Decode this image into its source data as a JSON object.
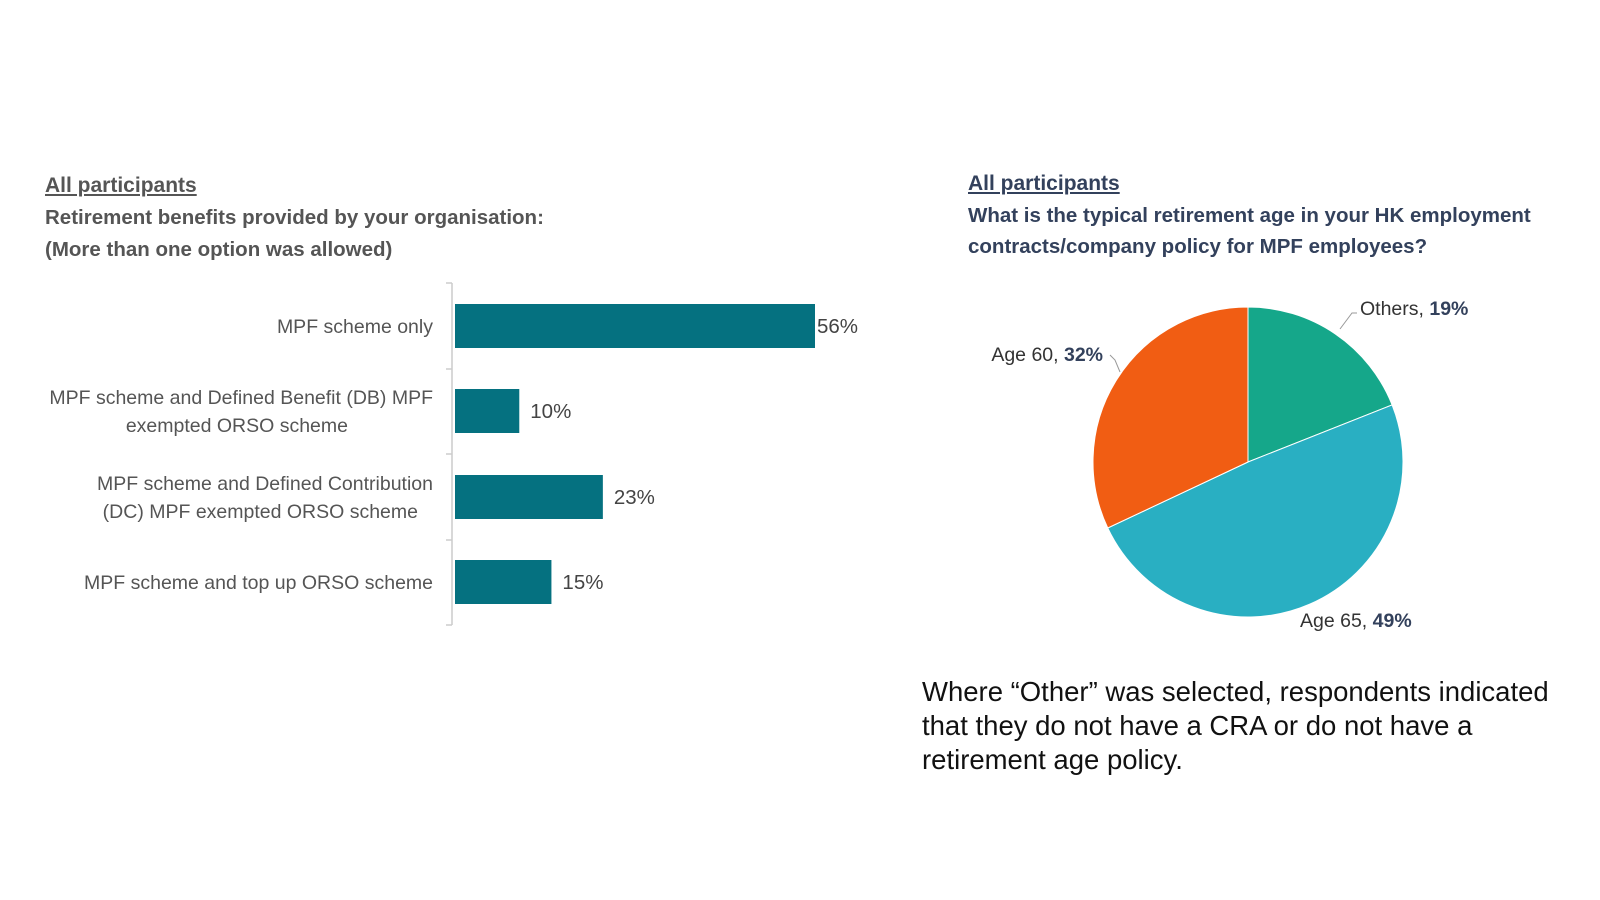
{
  "left_panel": {
    "tag": "All participants",
    "question_line1": "Retirement benefits provided by your organisation:",
    "question_line2": "(More than one option was allowed)"
  },
  "right_panel": {
    "tag": "All participants",
    "question_line1": "What is the typical retirement age in your HK employment",
    "question_line2": "contracts/company policy for MPF employees?"
  },
  "note": "Where “Other” was selected, respondents indicated that they do not have a CRA or do not have a retirement age policy.",
  "colors": {
    "bar": "#057180",
    "others": "#15a78a",
    "age65": "#29afc2",
    "age60": "#f15d13"
  },
  "chart_data": [
    {
      "type": "bar",
      "orientation": "horizontal",
      "title": "Retirement benefits provided by your organisation:",
      "categories": [
        [
          "MPF scheme only"
        ],
        [
          "MPF scheme and Defined Benefit (DB) MPF",
          "exempted ORSO scheme"
        ],
        [
          "MPF scheme and Defined Contribution",
          "(DC) MPF exempted ORSO scheme"
        ],
        [
          "MPF scheme and top up ORSO scheme"
        ]
      ],
      "values": [
        56,
        10,
        23,
        15
      ],
      "value_labels": [
        "56%",
        "10%",
        "23%",
        "15%"
      ],
      "unit": "%",
      "xlim": [
        0,
        56
      ],
      "grid": false
    },
    {
      "type": "pie",
      "title": "What is the typical retirement age in your HK employment contracts/company policy for MPF employees?",
      "slices": [
        {
          "name": "Others",
          "label": "Others, ",
          "pct_text": "19%",
          "value": 19,
          "color": "#15a78a"
        },
        {
          "name": "Age 65",
          "label": "Age 65, ",
          "pct_text": "49%",
          "value": 49,
          "color": "#29afc2"
        },
        {
          "name": "Age 60",
          "label": "Age 60, ",
          "pct_text": "32%",
          "value": 32,
          "color": "#f15d13"
        }
      ],
      "start": "12 o'clock",
      "direction": "clockwise"
    }
  ]
}
